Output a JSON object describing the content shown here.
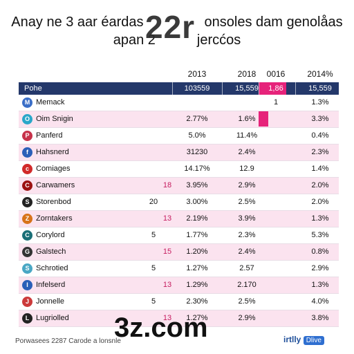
{
  "chart_data": {
    "type": "table",
    "title_line1": "Anay ne 3 aar éardas",
    "title_line1b": "onsoles dam genolåas",
    "title_line2": "apan 2",
    "title_line2b": "jercćos",
    "title_overlay": "22r",
    "columns": [
      "2013",
      "2018",
      "0016",
      "2014%"
    ],
    "header_label": "Pohe",
    "header_values": [
      "103559",
      "15,559",
      "1,86",
      "15,559"
    ],
    "rows": [
      {
        "name": "Memack",
        "num": "",
        "num_color": "",
        "v": [
          "",
          "",
          "1",
          "1.3%"
        ],
        "icon": "M",
        "icon_color": "#3a6ec7"
      },
      {
        "name": "Oim Snigin",
        "num": "",
        "num_color": "",
        "v": [
          "2.77%",
          "1.6%",
          "",
          "3.3%"
        ],
        "icon": "O",
        "icon_color": "#2aa7c9"
      },
      {
        "name": "Panferd",
        "num": "",
        "num_color": "",
        "v": [
          "5.0%",
          "11.4%",
          "",
          "0.4%"
        ],
        "icon": "P",
        "icon_color": "#c7324a"
      },
      {
        "name": "Hahsnerd",
        "num": "",
        "num_color": "",
        "v": [
          "31230",
          "2.4%",
          "",
          "2.3%"
        ],
        "icon": "f",
        "icon_color": "#2b5fb8"
      },
      {
        "name": "Comiages",
        "num": "",
        "num_color": "",
        "v": [
          "14.17%",
          "12.9",
          "",
          "1.4%"
        ],
        "icon": "c",
        "icon_color": "#d12a2a"
      },
      {
        "name": "Carwamers",
        "num": "18",
        "num_color": "pink",
        "v": [
          "3.95%",
          "2.9%",
          "",
          "2.0%"
        ],
        "icon": "C",
        "icon_color": "#9c1111"
      },
      {
        "name": "Storenbod",
        "num": "20",
        "num_color": "",
        "v": [
          "3.00%",
          "2.5%",
          "",
          "2.0%"
        ],
        "icon": "S",
        "icon_color": "#222222"
      },
      {
        "name": "Zorntakers",
        "num": "13",
        "num_color": "pink",
        "v": [
          "2.19%",
          "3.9%",
          "",
          "1.3%"
        ],
        "icon": "Z",
        "icon_color": "#d7731a"
      },
      {
        "name": "Corylord",
        "num": "5",
        "num_color": "",
        "v": [
          "1.77%",
          "2.3%",
          "",
          "5.3%"
        ],
        "icon": "C",
        "icon_color": "#1a6f77"
      },
      {
        "name": "Galstech",
        "num": "15",
        "num_color": "pink",
        "v": [
          "1.20%",
          "2.4%",
          "",
          "0.8%"
        ],
        "icon": "G",
        "icon_color": "#333333"
      },
      {
        "name": "Schrotied",
        "num": "5",
        "num_color": "",
        "v": [
          "1.27%",
          "2.57",
          "",
          "2.9%"
        ],
        "icon": "S",
        "icon_color": "#4aa7c4"
      },
      {
        "name": "Infelserd",
        "num": "13",
        "num_color": "pink",
        "v": [
          "1.29%",
          "2.170",
          "",
          "1.3%"
        ],
        "icon": "I",
        "icon_color": "#2b5fb8"
      },
      {
        "name": "Jonnelle",
        "num": "5",
        "num_color": "",
        "v": [
          "2.30%",
          "2.5%",
          "",
          "4.0%"
        ],
        "icon": "J",
        "icon_color": "#cc3a3a"
      },
      {
        "name": "Lugriolled",
        "num": "13",
        "num_color": "pink",
        "v": [
          "1.27%",
          "2.9%",
          "",
          "3.8%"
        ],
        "icon": "L",
        "icon_color": "#222222"
      }
    ]
  },
  "footer": {
    "left": "Porwasees 2287 Carode a lonsnle",
    "overlay": "3z.com",
    "brand": "irtlly",
    "chip": "Dlive"
  },
  "colors": {
    "header": "#24386a",
    "alt_row": "#fbe3ef",
    "accent": "#e6237a"
  }
}
